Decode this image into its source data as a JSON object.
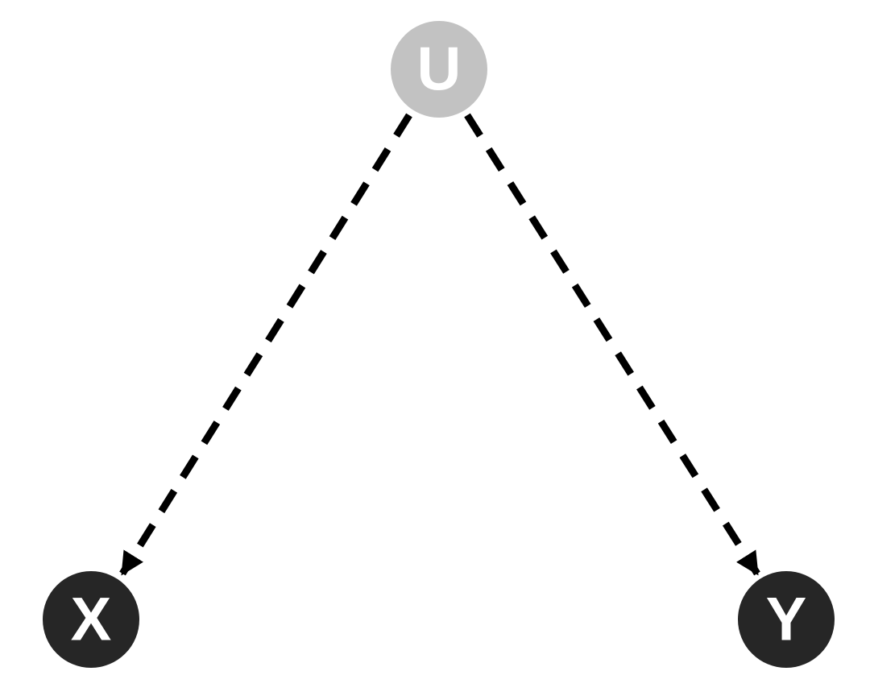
{
  "nodes": [
    {
      "id": "U",
      "label": "U",
      "color": "#c2c2c2"
    },
    {
      "id": "X",
      "label": "X",
      "color": "#262626"
    },
    {
      "id": "Y",
      "label": "Y",
      "color": "#262626"
    }
  ],
  "edges": [
    {
      "from": "U",
      "to": "X",
      "style": "dashed"
    },
    {
      "from": "U",
      "to": "Y",
      "style": "dashed"
    }
  ],
  "colors": {
    "edge": "#000000",
    "label": "#ffffff"
  }
}
